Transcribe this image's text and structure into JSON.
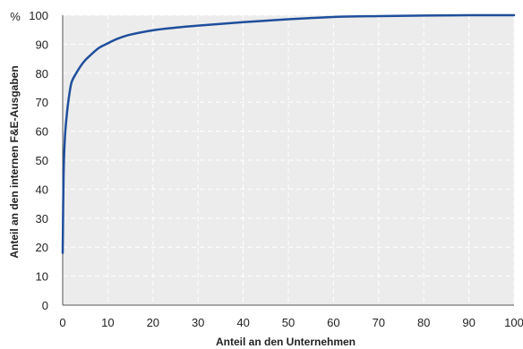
{
  "chart_data": {
    "type": "line",
    "title": "",
    "xlabel": "Anteil an den Unternehmen",
    "ylabel": "Anteil an den internen F&E-Ausgaben",
    "y_unit": "%",
    "xlim": [
      0,
      100
    ],
    "ylim": [
      0,
      100
    ],
    "x_ticks": [
      0,
      10,
      20,
      30,
      40,
      50,
      60,
      70,
      80,
      90,
      100
    ],
    "y_ticks": [
      0,
      10,
      20,
      30,
      40,
      50,
      60,
      70,
      80,
      90,
      100
    ],
    "grid": true,
    "series": [
      {
        "x": [
          0,
          0.2,
          0.5,
          1,
          1.5,
          2,
          3,
          4,
          5,
          6,
          8,
          10,
          12,
          15,
          20,
          25,
          30,
          40,
          50,
          60,
          70,
          80,
          90,
          100
        ],
        "y": [
          18,
          45,
          58,
          67,
          73,
          77,
          80,
          82.5,
          84.5,
          86,
          88.7,
          90.3,
          91.8,
          93.3,
          94.8,
          95.7,
          96.4,
          97.6,
          98.6,
          99.4,
          99.7,
          99.9,
          100,
          100
        ]
      }
    ],
    "colors": {
      "line": "#1f4e9c",
      "plot_background": "#ececec",
      "grid": "#ffffff"
    }
  }
}
